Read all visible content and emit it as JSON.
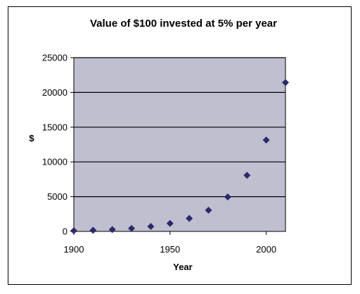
{
  "chart_data": {
    "type": "scatter",
    "title": "Value of $100 invested at 5% per year",
    "xlabel": "Year",
    "ylabel": "$",
    "xlim": [
      1900,
      2010
    ],
    "ylim": [
      0,
      25000
    ],
    "xticks": [
      1900,
      1950,
      2000
    ],
    "xtick_labels": [
      "1900",
      "1950",
      "2000"
    ],
    "yticks": [
      0,
      5000,
      10000,
      15000,
      20000,
      25000
    ],
    "ytick_labels": [
      "0",
      "5000",
      "10000",
      "15000",
      "20000",
      "25000"
    ],
    "grid": "horizontal",
    "legend": "none",
    "plot_background": "#c0bfcf",
    "marker_color": "#2b2a6b",
    "series": [
      {
        "x": [
          1900,
          1910,
          1920,
          1930,
          1940,
          1950,
          1960,
          1970,
          1980,
          1990,
          2000,
          2010
        ],
        "values": [
          100,
          163,
          265,
          432,
          704,
          1147,
          1868,
          3043,
          4956,
          8073,
          13150,
          21420
        ]
      }
    ]
  }
}
